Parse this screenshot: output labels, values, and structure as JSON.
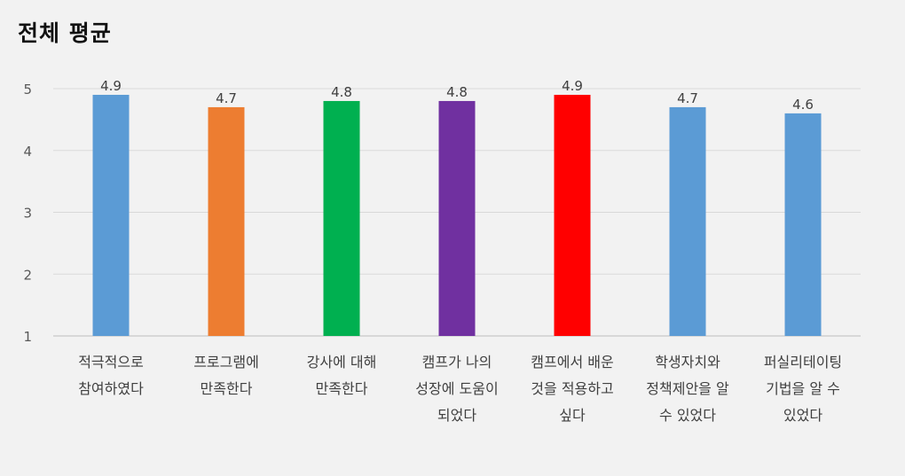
{
  "chart_data": {
    "type": "bar",
    "title": "전체 평균",
    "xlabel": "",
    "ylabel": "",
    "ylim": [
      1,
      5
    ],
    "yticks": [
      "1",
      "2",
      "3",
      "4",
      "5"
    ],
    "grid": true,
    "legend": "none",
    "categories": [
      [
        "적극적으로",
        "참여하였다"
      ],
      [
        "프로그램에",
        "만족한다"
      ],
      [
        "강사에 대해",
        "만족한다"
      ],
      [
        "캠프가 나의",
        "성장에 도움이",
        "되었다"
      ],
      [
        "캠프에서 배운",
        "것을 적용하고",
        "싶다"
      ],
      [
        "학생자치와",
        "정책제안을 알",
        "수 있었다"
      ],
      [
        "퍼실리테이팅",
        "기법을 알 수",
        "있었다"
      ]
    ],
    "values": [
      4.9,
      4.7,
      4.8,
      4.8,
      4.9,
      4.7,
      4.6
    ],
    "value_labels": [
      "4.9",
      "4.7",
      "4.8",
      "4.8",
      "4.9",
      "4.7",
      "4.6"
    ],
    "bar_colors": [
      "#5b9bd5",
      "#ed7d31",
      "#00b050",
      "#7030a0",
      "#ff0000",
      "#5b9bd5",
      "#5b9bd5"
    ]
  }
}
